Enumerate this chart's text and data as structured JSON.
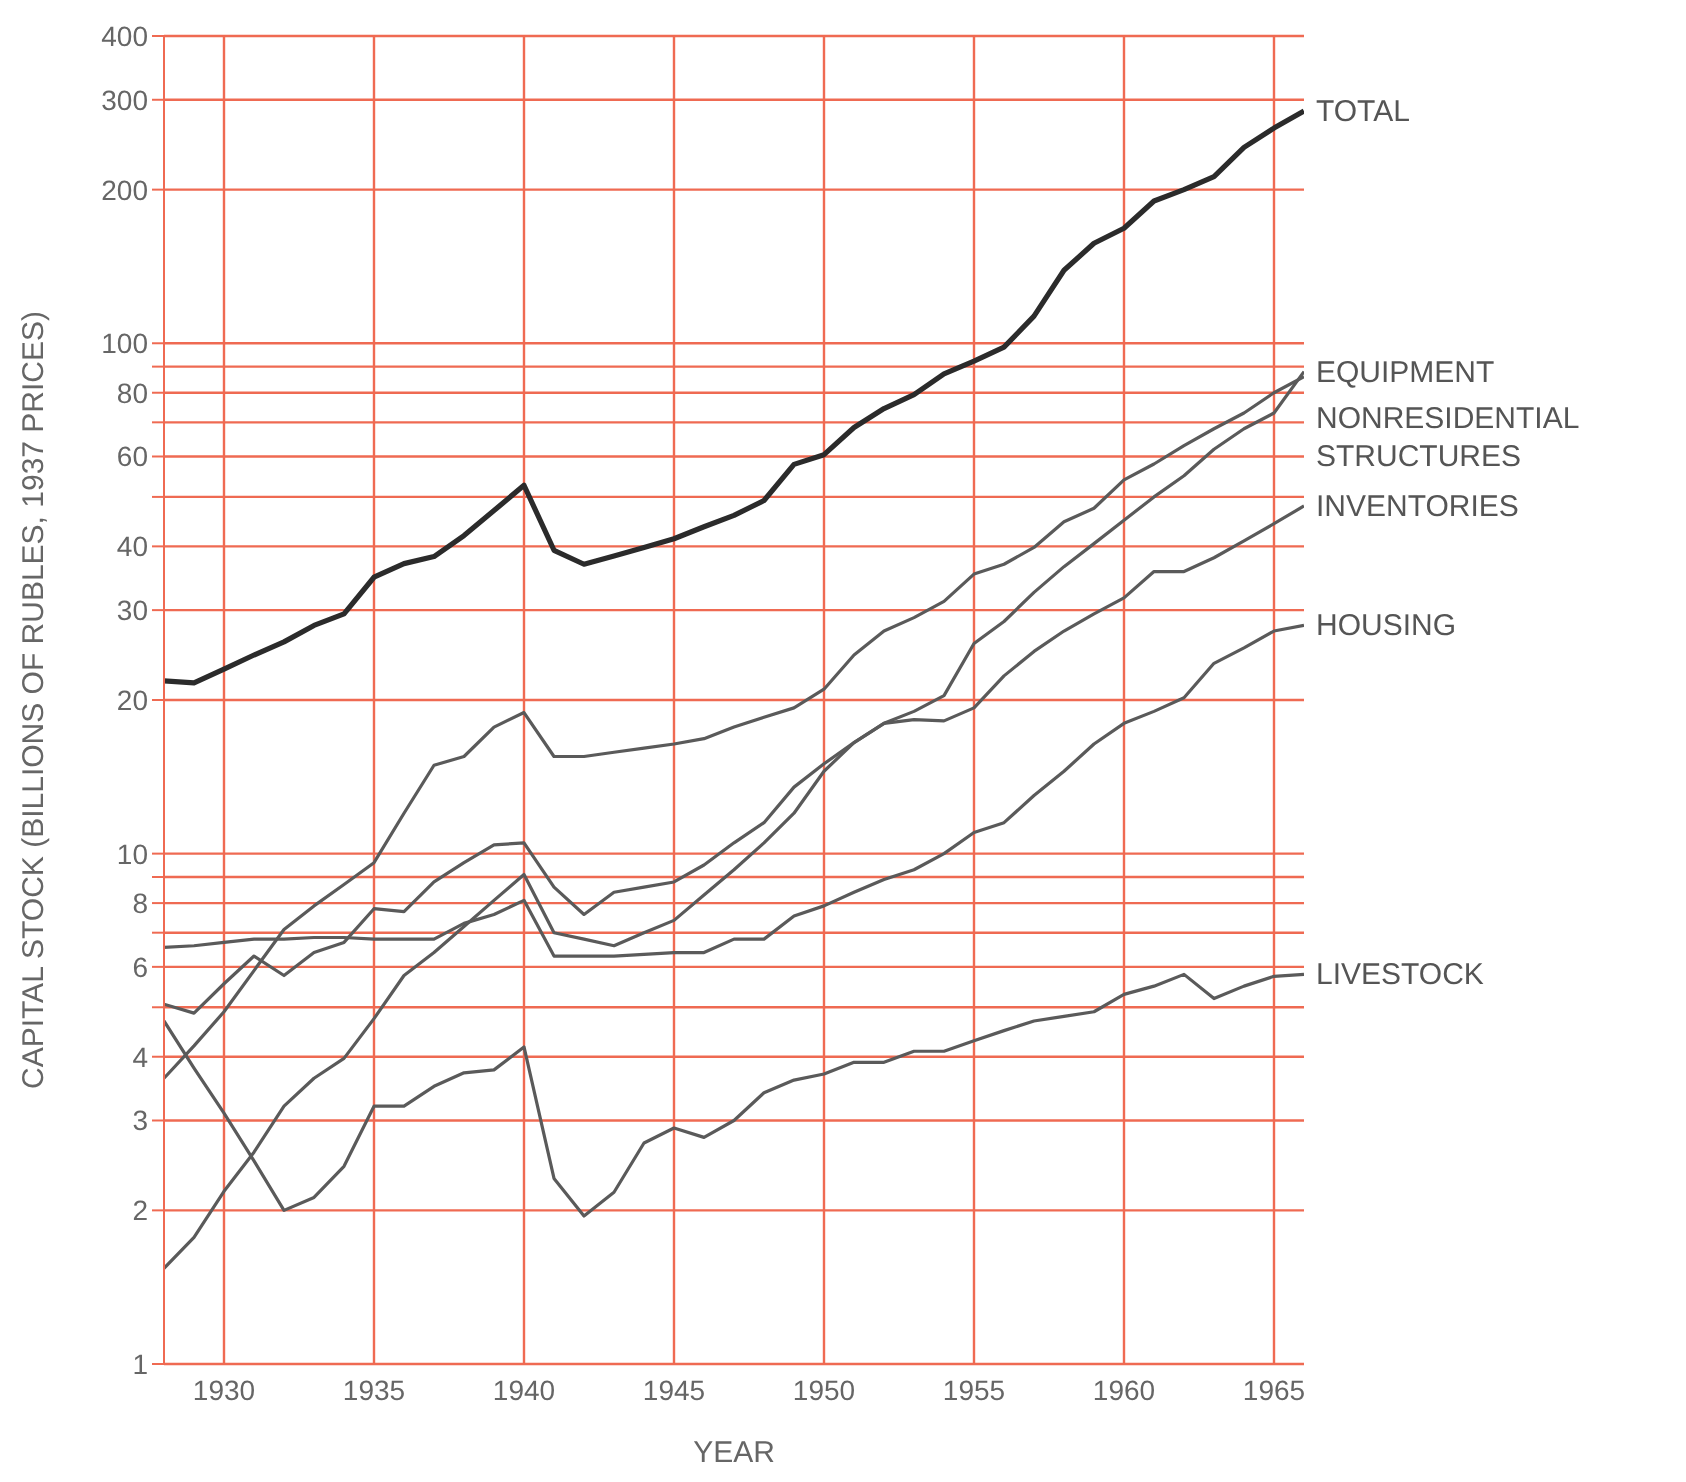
{
  "chart_data": {
    "type": "line",
    "xlabel": "YEAR",
    "ylabel": "CAPITAL STOCK (BILLIONS OF RUBLES, 1937 PRICES)",
    "log": "y",
    "grid": true,
    "x": [
      1928,
      1929,
      1930,
      1931,
      1932,
      1933,
      1934,
      1935,
      1936,
      1937,
      1938,
      1939,
      1940,
      1941,
      1942,
      1943,
      1944,
      1945,
      1946,
      1947,
      1948,
      1949,
      1950,
      1951,
      1952,
      1953,
      1954,
      1955,
      1956,
      1957,
      1958,
      1959,
      1960,
      1961,
      1962,
      1963,
      1964,
      1965,
      1966
    ],
    "xlim": [
      1928,
      1966
    ],
    "xticks": [
      1930,
      1935,
      1940,
      1945,
      1950,
      1955,
      1960,
      1965
    ],
    "ylim": [
      1,
      400
    ],
    "yticks": [
      1,
      2,
      3,
      4,
      {
        "value": 5,
        "label": null
      },
      6,
      {
        "value": 7,
        "label": null
      },
      8,
      {
        "value": 9,
        "label": null
      },
      10,
      20,
      30,
      40,
      {
        "value": 50,
        "label": null
      },
      60,
      {
        "value": 70,
        "label": null
      },
      80,
      {
        "value": 90,
        "label": null
      },
      100,
      200,
      300,
      400
    ],
    "series": [
      {
        "name": "TOTAL",
        "color": "#2b2b2b",
        "values": [
          21.8,
          21.6,
          23,
          24.5,
          26,
          28,
          29.5,
          34.8,
          37,
          38.2,
          42,
          47,
          52.7,
          39.3,
          36.9,
          38.3,
          39.8,
          41.4,
          43.7,
          46,
          49.2,
          57.9,
          60.5,
          68.4,
          74.5,
          79.3,
          87.1,
          92.3,
          98.3,
          113,
          139,
          157,
          168,
          190,
          200,
          212,
          242,
          264,
          285
        ]
      },
      {
        "name": "EQUIPMENT",
        "color": "#5a5a5a",
        "values": [
          1.54,
          1.77,
          2.18,
          2.6,
          3.2,
          3.63,
          3.97,
          4.75,
          5.77,
          6.4,
          7.2,
          8.1,
          9.1,
          7.0,
          6.8,
          6.6,
          7.0,
          7.4,
          8.3,
          9.3,
          10.5,
          12,
          14.5,
          16.5,
          18,
          19,
          20.4,
          25.8,
          28.5,
          32.5,
          36.5,
          40.5,
          45,
          50,
          55,
          62,
          68,
          73,
          88
        ]
      },
      {
        "name": "NONRESIDENTIAL STRUCTURES",
        "color": "#5a5a5a",
        "values": [
          3.63,
          4.2,
          4.9,
          5.9,
          7.1,
          7.9,
          8.7,
          9.6,
          12,
          14.9,
          15.5,
          17.7,
          18.9,
          15.5,
          15.5,
          15.8,
          16.1,
          16.4,
          16.8,
          17.7,
          18.5,
          19.3,
          21,
          24.5,
          27.3,
          29,
          31.2,
          35.3,
          36.9,
          39.8,
          44.7,
          47.5,
          54,
          58,
          63,
          68,
          73,
          80,
          86
        ]
      },
      {
        "name": "INVENTORIES",
        "color": "#5a5a5a",
        "values": [
          5.07,
          4.87,
          5.56,
          6.3,
          5.77,
          6.4,
          6.7,
          7.8,
          7.7,
          8.8,
          9.6,
          10.4,
          10.5,
          8.6,
          7.6,
          8.4,
          8.6,
          8.8,
          9.5,
          10.5,
          11.5,
          13.5,
          15,
          16.5,
          18,
          18.3,
          18.2,
          19.3,
          22.3,
          24.9,
          27.3,
          29.5,
          31.7,
          35.7,
          35.7,
          38,
          41,
          44.3,
          48
        ]
      },
      {
        "name": "HOUSING",
        "color": "#5a5a5a",
        "values": [
          6.55,
          6.6,
          6.7,
          6.8,
          6.8,
          6.85,
          6.85,
          6.8,
          6.8,
          6.8,
          7.3,
          7.6,
          8.1,
          6.3,
          6.3,
          6.3,
          6.35,
          6.4,
          6.4,
          6.8,
          6.8,
          7.55,
          7.9,
          8.4,
          8.9,
          9.3,
          10,
          11,
          11.5,
          13,
          14.5,
          16.4,
          18,
          19,
          20.2,
          23.6,
          25.3,
          27.3,
          28
        ]
      },
      {
        "name": "LIVESTOCK",
        "color": "#5a5a5a",
        "values": [
          4.7,
          3.8,
          3.1,
          2.5,
          2.0,
          2.12,
          2.44,
          3.2,
          3.2,
          3.5,
          3.72,
          3.77,
          4.18,
          2.31,
          1.95,
          2.17,
          2.71,
          2.9,
          2.78,
          3.0,
          3.4,
          3.6,
          3.7,
          3.9,
          3.9,
          4.1,
          4.1,
          4.3,
          4.5,
          4.7,
          4.8,
          4.9,
          5.3,
          5.5,
          5.8,
          5.2,
          5.5,
          5.75,
          5.8
        ]
      }
    ]
  }
}
